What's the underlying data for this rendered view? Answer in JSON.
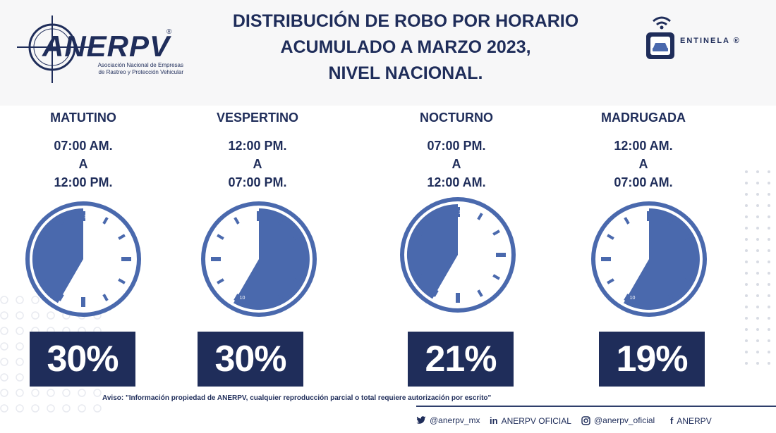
{
  "title": {
    "line1": "DISTRIBUCIÓN DE ROBO POR HORARIO",
    "line2": "ACUMULADO A MARZO 2023,",
    "line3": "NIVEL NACIONAL."
  },
  "logos": {
    "anerpv": {
      "name": "ANERPV",
      "registered": "®",
      "subtitle1": "Asociación Nacional de Empresas",
      "subtitle2": "de Rastreo y Protección Vehicular"
    },
    "centinela": {
      "name": "ENTINELA",
      "registered": "®"
    }
  },
  "chart_data": {
    "type": "pie",
    "title": "DISTRIBUCIÓN DE ROBO POR HORARIO ACUMULADO A MARZO 2023, NIVEL NACIONAL.",
    "unit": "%",
    "categories": [
      "MATUTINO",
      "VESPERTINO",
      "NOCTURNO",
      "MADRUGADA"
    ],
    "values": [
      30,
      30,
      21,
      19
    ],
    "labels": [
      "30%",
      "30%",
      "21%",
      "19%"
    ],
    "ranges": [
      {
        "start": "07:00 AM.",
        "sep": "A",
        "end": "12:00 PM."
      },
      {
        "start": "12:00 PM.",
        "sep": "A",
        "end": "07:00 PM."
      },
      {
        "start": "07:00 PM.",
        "sep": "A",
        "end": "12:00 AM."
      },
      {
        "start": "12:00 AM.",
        "sep": "A",
        "end": "07:00 AM."
      }
    ],
    "clock_labels": [
      "12",
      "10",
      "12",
      "10"
    ],
    "colors": {
      "fill": "#4a69ad",
      "text": "#1f2d5a",
      "badge": "#1f2d5a"
    }
  },
  "footer": {
    "notice": "Aviso: \"Información propiedad de ANERPV, cualquier reproducción parcial o total requiere autorización por escrito\"",
    "twitter": "@anerpv_mx",
    "linkedin": "ANERPV OFICIAL",
    "instagram": "@anerpv_oficial",
    "facebook": "ANERPV",
    "icons": [
      "twitter-icon",
      "linkedin-icon",
      "instagram-icon",
      "facebook-icon"
    ]
  }
}
